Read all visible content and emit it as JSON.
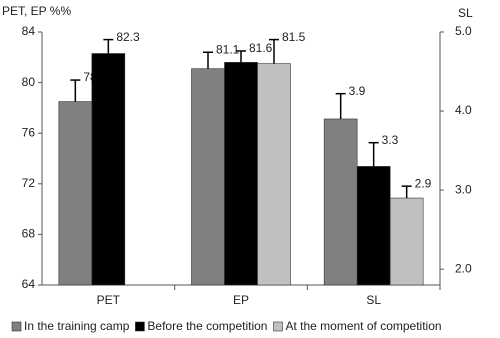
{
  "chart_data": {
    "type": "bar",
    "y_label": "PET, EP %%",
    "y2_label": "SL",
    "categories": [
      "PET",
      "EP",
      "SL"
    ],
    "category_axis": [
      "y",
      "y",
      "y2"
    ],
    "series": [
      {
        "name": "In the training camp",
        "color": "#808080",
        "values": [
          78.5,
          81.1,
          3.9
        ],
        "errors": [
          1.7,
          1.3,
          0.32
        ]
      },
      {
        "name": "Before the competition",
        "color": "#000000",
        "values": [
          82.3,
          81.6,
          3.3
        ],
        "errors": [
          1.1,
          0.9,
          0.3
        ]
      },
      {
        "name": "At the moment of competition",
        "color": "#c0c0c0",
        "values": [
          null,
          81.5,
          2.9
        ],
        "errors": [
          null,
          1.9,
          0.15
        ]
      }
    ],
    "ylim": [
      64,
      84
    ],
    "yticks": [
      64,
      68,
      72,
      76,
      80,
      84
    ],
    "y2lim": [
      1.8,
      5.0
    ],
    "y2ticks": [
      {
        "value": 2,
        "label": "2.0"
      },
      {
        "value": 3,
        "label": "3.0"
      },
      {
        "value": 4,
        "label": "4.0"
      },
      {
        "value": 5,
        "label": "5.0"
      }
    ],
    "legend": "bottom"
  }
}
